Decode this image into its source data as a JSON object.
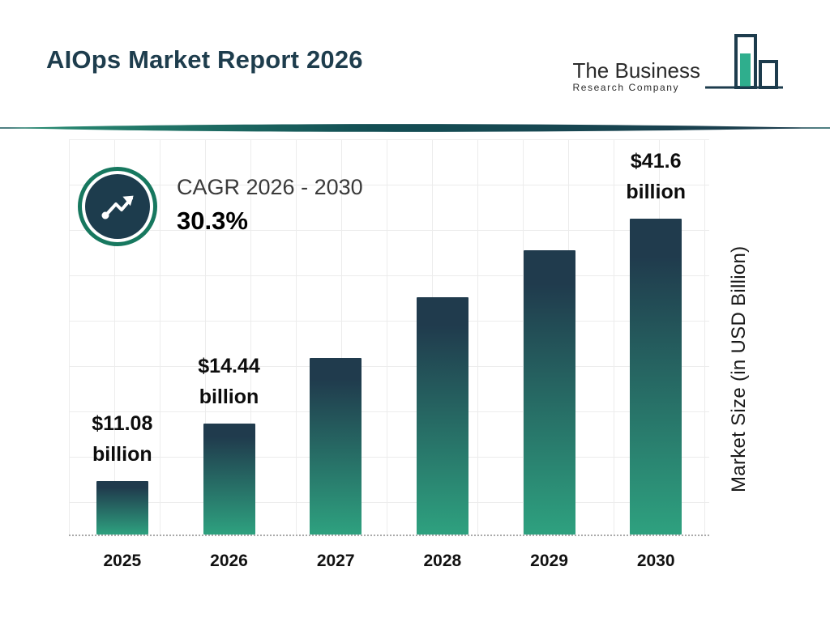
{
  "header": {
    "title": "AIOps Market Report 2026",
    "logo": {
      "line1": "The Business",
      "line2": "Research Company"
    }
  },
  "cagr": {
    "label": "CAGR 2026 - 2030",
    "value": "30.3%"
  },
  "chart_data": {
    "type": "bar",
    "title": "AIOps Market Report 2026",
    "categories": [
      "2025",
      "2026",
      "2027",
      "2028",
      "2029",
      "2030"
    ],
    "values": [
      11.08,
      14.44,
      18.8,
      24.5,
      31.9,
      41.6
    ],
    "bar_labels": [
      {
        "value": "$11.08",
        "unit": "billion"
      },
      {
        "value": "$14.44",
        "unit": "billion"
      },
      null,
      null,
      null,
      {
        "value": "$41.6",
        "unit": "billion"
      }
    ],
    "xlabel": "",
    "ylabel": "Market Size (in USD Billion)",
    "ylim": [
      0,
      45
    ],
    "grid": true,
    "legend": "none",
    "bar_gradient_top": "#203b4d",
    "bar_gradient_bottom": "#2ea17f",
    "heights_pct": [
      17,
      35,
      56,
      75,
      90,
      100
    ]
  },
  "colors": {
    "title": "#1e3d4d",
    "accent_teal": "#17785f",
    "dark_navy": "#1d3c4d",
    "logo_teal": "#2fae8d",
    "grid": "#ececec"
  }
}
